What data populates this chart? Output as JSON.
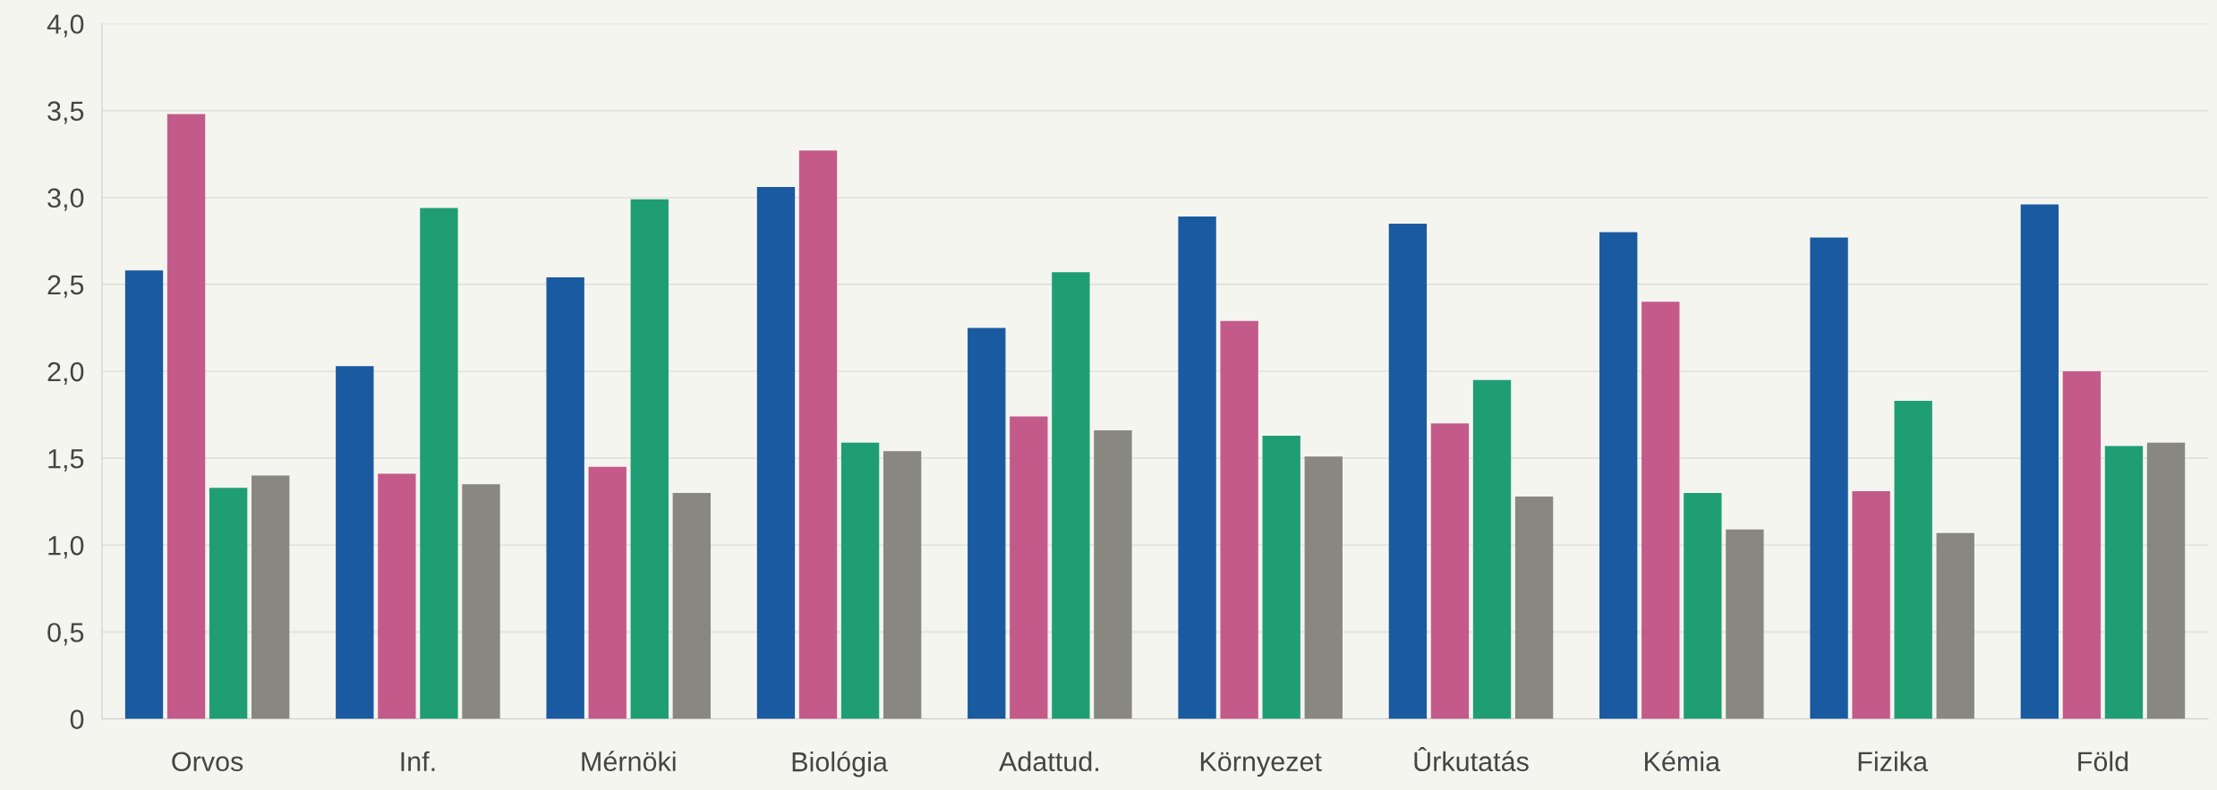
{
  "chart_data": {
    "type": "bar",
    "categories": [
      "Orvos",
      "Inf.",
      "Mérnöki",
      "Biológia",
      "Adattud.",
      "Környezet",
      "Ûrkutatás",
      "Kémia",
      "Fizika",
      "Föld"
    ],
    "series": [
      {
        "color": "#1a5aa0",
        "values": [
          2.58,
          2.03,
          2.54,
          3.06,
          2.25,
          2.89,
          2.85,
          2.8,
          2.77,
          2.96
        ]
      },
      {
        "color": "#c45a8a",
        "values": [
          3.48,
          1.41,
          1.45,
          3.27,
          1.74,
          2.29,
          1.7,
          2.4,
          1.31,
          2.0
        ]
      },
      {
        "color": "#1f9e74",
        "values": [
          1.33,
          2.94,
          2.99,
          1.59,
          2.57,
          1.63,
          1.95,
          1.3,
          1.83,
          1.57
        ]
      },
      {
        "color": "#888880",
        "values": [
          1.4,
          1.35,
          1.3,
          1.54,
          1.66,
          1.51,
          1.28,
          1.09,
          1.07,
          1.59
        ]
      }
    ],
    "ylim": [
      0,
      4
    ],
    "yticks": [
      0,
      {
        "value": 0.5,
        "label": "0,5"
      },
      {
        "value": 1,
        "label": "1,0"
      },
      {
        "value": 1.5,
        "label": "1,5"
      },
      {
        "value": 2,
        "label": "2,0"
      },
      {
        "value": 2.5,
        "label": "2,5"
      },
      {
        "value": 3,
        "label": "3,0"
      },
      {
        "value": 3.5,
        "label": "3,5"
      },
      {
        "value": 4,
        "label": "4,0"
      }
    ],
    "grid": "y"
  }
}
